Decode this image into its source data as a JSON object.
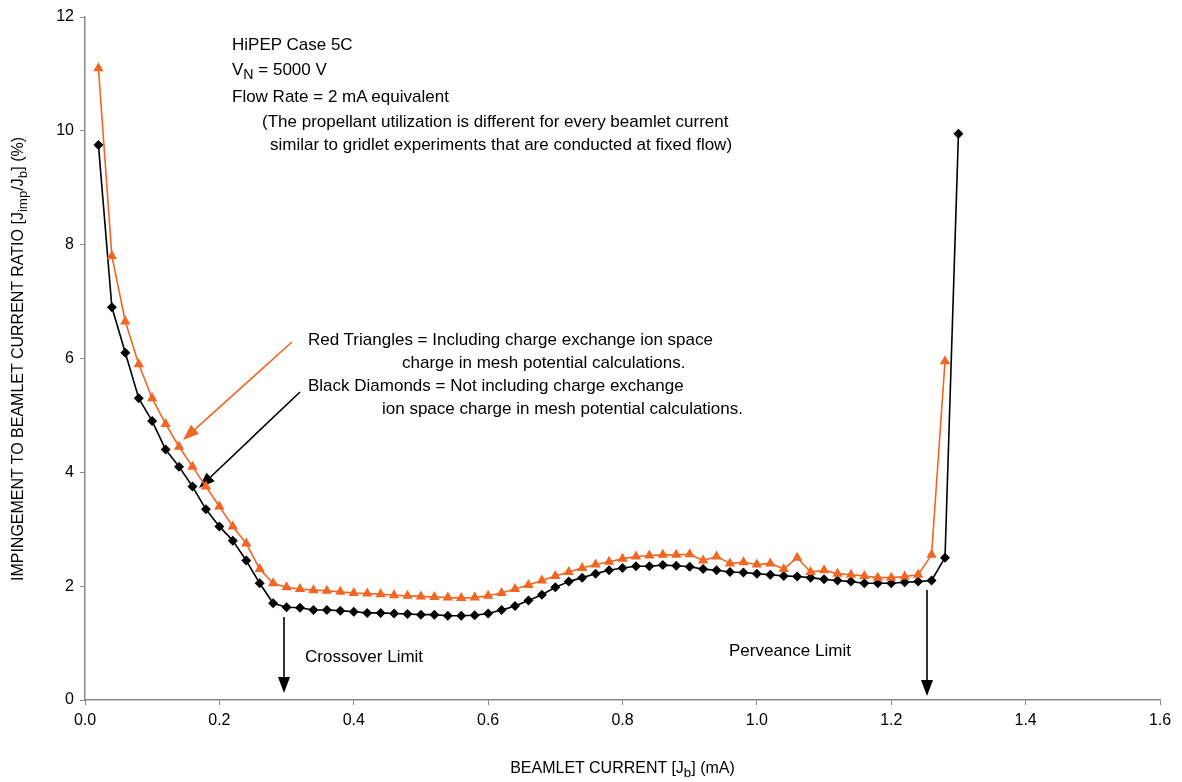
{
  "chart_data": {
    "type": "line",
    "xlabel": "BEAMLET CURRENT [J$_{b}$] (mA)",
    "ylabel": "IMPINGEMENT TO BEAMLET CURRENT RATIO [J$_{imp}$/J$_{b}$] (%)",
    "x": [
      0.02,
      0.04,
      0.06,
      0.08,
      0.1,
      0.12,
      0.14,
      0.16,
      0.18,
      0.2,
      0.22,
      0.24,
      0.26,
      0.28,
      0.3,
      0.32,
      0.34,
      0.36,
      0.38,
      0.4,
      0.42,
      0.44,
      0.46,
      0.48,
      0.5,
      0.52,
      0.54,
      0.56,
      0.58,
      0.6,
      0.62,
      0.64,
      0.66,
      0.68,
      0.7,
      0.72,
      0.74,
      0.76,
      0.78,
      0.8,
      0.82,
      0.84,
      0.86,
      0.88,
      0.9,
      0.92,
      0.94,
      0.96,
      0.98,
      1.0,
      1.02,
      1.04,
      1.06,
      1.08,
      1.1,
      1.12,
      1.14,
      1.16,
      1.18,
      1.2,
      1.22,
      1.24,
      1.26,
      1.28,
      1.3
    ],
    "series": [
      {
        "color": "#f26522",
        "marker": "triangle",
        "values": [
          11.1,
          7.8,
          6.65,
          5.9,
          5.3,
          4.85,
          4.45,
          4.1,
          3.75,
          3.4,
          3.05,
          2.75,
          2.3,
          2.05,
          1.98,
          1.95,
          1.93,
          1.92,
          1.9,
          1.88,
          1.87,
          1.86,
          1.84,
          1.83,
          1.82,
          1.81,
          1.8,
          1.79,
          1.8,
          1.83,
          1.88,
          1.95,
          2.02,
          2.1,
          2.18,
          2.25,
          2.32,
          2.38,
          2.43,
          2.48,
          2.52,
          2.54,
          2.55,
          2.55,
          2.56,
          2.45,
          2.52,
          2.4,
          2.42,
          2.38,
          2.4,
          2.3,
          2.5,
          2.25,
          2.28,
          2.22,
          2.2,
          2.18,
          2.15,
          2.15,
          2.17,
          2.2,
          2.55,
          5.95,
          null
        ]
      },
      {
        "color": "#000000",
        "marker": "diamond",
        "values": [
          9.75,
          6.9,
          6.1,
          5.3,
          4.9,
          4.4,
          4.1,
          3.75,
          3.35,
          3.05,
          2.8,
          2.45,
          2.05,
          1.7,
          1.63,
          1.62,
          1.58,
          1.58,
          1.57,
          1.55,
          1.53,
          1.53,
          1.52,
          1.51,
          1.5,
          1.5,
          1.48,
          1.48,
          1.49,
          1.52,
          1.58,
          1.65,
          1.75,
          1.85,
          1.98,
          2.08,
          2.15,
          2.22,
          2.28,
          2.32,
          2.35,
          2.35,
          2.37,
          2.36,
          2.34,
          2.3,
          2.28,
          2.25,
          2.24,
          2.22,
          2.2,
          2.18,
          2.17,
          2.15,
          2.12,
          2.1,
          2.08,
          2.05,
          2.05,
          2.05,
          2.07,
          2.08,
          2.1,
          2.5,
          9.95
        ]
      }
    ],
    "xlim": [
      0,
      1.6
    ],
    "xticks": [
      {
        "value": 0,
        "label": "0.0"
      },
      0.2,
      0.4,
      0.6,
      0.8,
      {
        "value": 1,
        "label": "1.0"
      },
      1.2,
      1.4,
      1.6
    ],
    "ylim": [
      0,
      12
    ],
    "yticks": [
      0,
      2,
      4,
      6,
      8,
      10,
      12
    ],
    "grid": false,
    "legend": false,
    "annotations": [
      "HiPEP Case 5C",
      "V$_{N}$ = 5000 V",
      "Flow Rate = 2 mA equivalent",
      "(The propellant utilization is different for every beamlet current\nsimilar to gridlet experiments that are conducted at fixed flow)",
      "Red Triangles = Including charge exchange ion space\ncharge in mesh potential calculations.",
      "Black Diamonds = Not including charge exchange\nion space charge in mesh potential calculations.",
      "Crossover Limit",
      "Perveance Limit"
    ]
  }
}
